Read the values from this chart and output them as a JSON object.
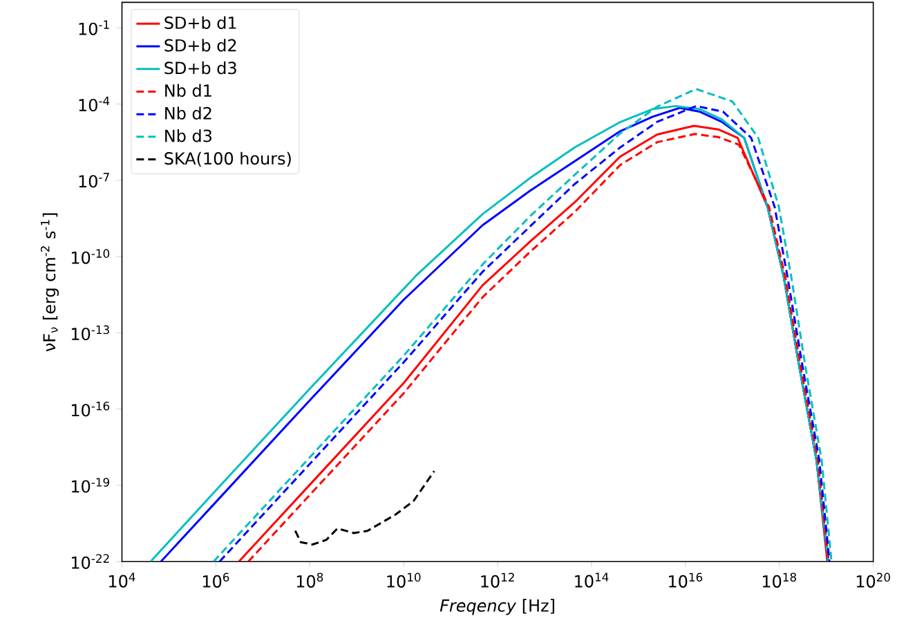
{
  "chart_data": {
    "type": "line",
    "xlabel": "*Freqency* [Hz]",
    "ylabel": "νF$_{ν}$ [erg cm$^{-2}$ s$^{-1}$]",
    "log": "xy",
    "legend": "top left",
    "marker": "none",
    "xlim": [
      10000.0,
      1e+20
    ],
    "ylim": [
      1e-22,
      1
    ],
    "xticks": [
      {
        "value": 10000.0,
        "label": "10$^{4}$"
      },
      {
        "value": 1000000.0,
        "label": "10$^{6}$"
      },
      {
        "value": 100000000.0,
        "label": "10$^{8}$"
      },
      {
        "value": 10000000000.0,
        "label": "10$^{10}$"
      },
      {
        "value": 1000000000000.0,
        "label": "10$^{12}$"
      },
      {
        "value": 100000000000000.0,
        "label": "10$^{14}$"
      },
      {
        "value": 1e+16,
        "label": "10$^{16}$"
      },
      {
        "value": 1e+18,
        "label": "10$^{18}$"
      },
      {
        "value": 1e+20,
        "label": "10$^{20}$"
      }
    ],
    "yticks": [
      {
        "value": 1e-22,
        "label": "10$^{-22}$"
      },
      {
        "value": 1e-19,
        "label": "10$^{-19}$"
      },
      {
        "value": 1e-16,
        "label": "10$^{-16}$"
      },
      {
        "value": 1e-13,
        "label": "10$^{-13}$"
      },
      {
        "value": 1e-10,
        "label": "10$^{-10}$"
      },
      {
        "value": 1e-07,
        "label": "10$^{-7}$"
      },
      {
        "value": 0.0001,
        "label": "10$^{-4}$"
      },
      {
        "value": 0.1,
        "label": "10$^{-1}$"
      }
    ],
    "series": [
      {
        "name": "SD+b d1",
        "color": "#ff0000",
        "line_style": "solid",
        "x": [
          3090000.0,
          100000000.0,
          10000000000.0,
          479000000000.0,
          5010000000000.0,
          43700000000000.0,
          407000000000000.0,
          2510000000000000.0,
          1.51e+16,
          5.01e+16,
          1.29e+17,
          5.62e+17,
          1.23e+18,
          2.69e+18,
          6.17e+18,
          1.05e+19
        ],
        "values": [
          1e-22,
          1.05e-19,
          1.05e-15,
          7.41e-12,
          3.98e-10,
          1.35e-08,
          8.51e-07,
          6.31e-06,
          1.38e-05,
          1e-05,
          4.68e-06,
          8.91e-09,
          1.74e-11,
          4.17e-15,
          1e-18,
          1e-22
        ]
      },
      {
        "name": "SD+b d2",
        "color": "#0000ff",
        "line_style": "solid",
        "x": [
          67600.0,
          1000000.0,
          100000000.0,
          10000000000.0,
          479000000000.0,
          5010000000000.0,
          43700000000000.0,
          407000000000000.0,
          2000000000000000.0,
          7590000000000000.0,
          2e+16,
          5.89e+16,
          1.78e+17,
          5.62e+17,
          1.23e+18,
          2.69e+18,
          6.17e+18,
          1.1e+19
        ],
        "values": [
          1e-22,
          2.19e-20,
          2.19e-16,
          2e-12,
          1.7e-09,
          3.98e-08,
          5.62e-07,
          8.51e-06,
          3.16e-05,
          7.08e-05,
          5.01e-05,
          2e-05,
          4.68e-06,
          8.91e-09,
          1.74e-11,
          4.17e-15,
          1e-18,
          1e-22
        ]
      },
      {
        "name": "SD+b d3",
        "color": "#00bfbf",
        "line_style": "solid",
        "x": [
          40700.0,
          1000000.0,
          100000000.0,
          18200000000.0,
          479000000000.0,
          5010000000000.0,
          43700000000000.0,
          407000000000000.0,
          2000000000000000.0,
          6170000000000000.0,
          2e+16,
          5.89e+16,
          1.78e+17,
          5.62e+17,
          1.23e+18,
          2.69e+18,
          6.17e+18,
          1.1e+19
        ],
        "values": [
          1e-22,
          6.31e-20,
          6.31e-16,
          1.74e-11,
          4.68e-09,
          1.26e-07,
          1.95e-06,
          1.95e-05,
          6.31e-05,
          8.32e-05,
          6.31e-05,
          2.51e-05,
          4.68e-06,
          8.91e-09,
          1.74e-11,
          4.17e-15,
          1e-18,
          1e-22
        ]
      },
      {
        "name": "Nb d1",
        "color": "#ff0000",
        "line_style": "dashed",
        "x": [
          4900000.0,
          100000000.0,
          10000000000.0,
          479000000000.0,
          5010000000000.0,
          43700000000000.0,
          407000000000000.0,
          2510000000000000.0,
          1.58e+16,
          5.01e+16,
          1.38e+17,
          6.03e+17,
          1.32e+18,
          2.88e+18,
          6.61e+18,
          1.12e+19
        ],
        "values": [
          1e-22,
          4.17e-20,
          4.17e-16,
          2.51e-12,
          1.58e-10,
          5.62e-09,
          3.98e-07,
          3.16e-06,
          6.61e-06,
          5.01e-06,
          2.51e-06,
          8.91e-09,
          1.74e-11,
          4.17e-15,
          1e-18,
          1e-22
        ]
      },
      {
        "name": "Nb d2",
        "color": "#0000ff",
        "line_style": "dashed",
        "x": [
          1200000.0,
          100000000.0,
          10000000000.0,
          479000000000.0,
          5010000000000.0,
          43700000000000.0,
          407000000000000.0,
          2510000000000000.0,
          1.7e+16,
          6.31e+16,
          2.51e+17,
          7.94e+17,
          1.48e+18,
          3.16e+18,
          7.08e+18,
          1.17e+19
        ],
        "values": [
          1e-22,
          6.92e-19,
          6.92e-15,
          2.51e-11,
          1.58e-09,
          7.08e-08,
          1.95e-06,
          2e-05,
          8.32e-05,
          5.01e-05,
          4.68e-06,
          8.91e-09,
          1.74e-11,
          4.17e-15,
          1e-18,
          1e-22
        ]
      },
      {
        "name": "Nb d3",
        "color": "#00bfbf",
        "line_style": "dashed",
        "x": [
          891000.0,
          100000000.0,
          10000000000.0,
          479000000000.0,
          5010000000000.0,
          43700000000000.0,
          407000000000000.0,
          2510000000000000.0,
          1.7e+16,
          1e+17,
          3.55e+17,
          9.77e+17,
          1.78e+18,
          3.63e+18,
          7.94e+18,
          1.29e+19
        ],
        "values": [
          1e-22,
          1.26e-18,
          1.26e-14,
          4.9e-11,
          3.98e-09,
          1.62e-07,
          6.92e-06,
          7.94e-05,
          0.000389,
          0.000126,
          4.68e-06,
          8.91e-09,
          1.74e-11,
          4.17e-15,
          1e-18,
          1e-22
        ]
      },
      {
        "name": "SKA(100 hours)",
        "color": "#000000",
        "line_style": "dashed",
        "x": [
          49000000.0,
          64600000.0,
          115000000.0,
          224000000.0,
          389000000.0,
          490000000.0,
          871000000.0,
          1700000000.0,
          6610000000.0,
          16200000000.0,
          44700000000.0
        ],
        "values": [
          1.62e-21,
          5.75e-22,
          4.68e-22,
          7.08e-22,
          2e-21,
          1.78e-21,
          1.32e-21,
          1.62e-21,
          6.92e-21,
          2.4e-20,
          3.63e-19
        ]
      }
    ]
  }
}
